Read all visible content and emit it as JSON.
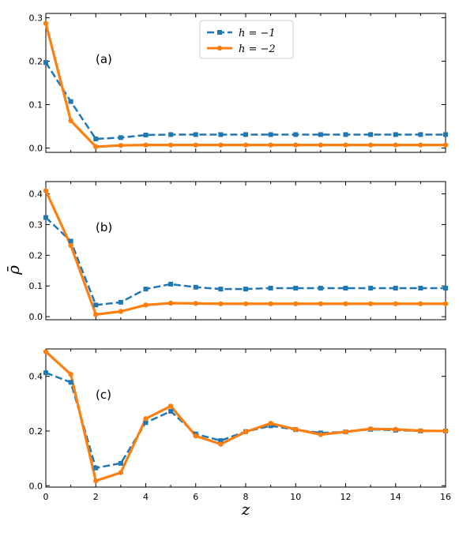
{
  "chart_data": {
    "type": "line",
    "x": [
      0,
      1,
      2,
      3,
      4,
      5,
      6,
      7,
      8,
      9,
      10,
      11,
      12,
      13,
      14,
      15,
      16
    ],
    "xlabel": "z",
    "ylabel": "ρ̄",
    "xlim": [
      0,
      16
    ],
    "xticks": [
      "0",
      "2",
      "4",
      "6",
      "8",
      "10",
      "12",
      "14",
      "16"
    ],
    "legend": {
      "placement": "top-center",
      "entries": [
        "h = −1",
        "h = −2"
      ]
    },
    "colors": {
      "h1": "#1f77b4",
      "h2": "#ff7f0e"
    },
    "panels": [
      {
        "label": "(a)",
        "ylim": [
          -0.01,
          0.31
        ],
        "yticks": [
          "0.0",
          "0.1",
          "0.2",
          "0.3"
        ],
        "series": [
          {
            "name": "h = −1",
            "values": [
              0.197,
              0.107,
              0.021,
              0.024,
              0.03,
              0.031,
              0.031,
              0.031,
              0.031,
              0.031,
              0.031,
              0.031,
              0.031,
              0.031,
              0.031,
              0.031,
              0.031
            ]
          },
          {
            "name": "h = −2",
            "values": [
              0.287,
              0.063,
              0.003,
              0.006,
              0.007,
              0.007,
              0.007,
              0.007,
              0.007,
              0.007,
              0.007,
              0.007,
              0.007,
              0.007,
              0.007,
              0.007,
              0.007
            ]
          }
        ]
      },
      {
        "label": "(b)",
        "ylim": [
          -0.01,
          0.44
        ],
        "yticks": [
          "0.0",
          "0.1",
          "0.2",
          "0.3",
          "0.4"
        ],
        "series": [
          {
            "name": "h = −1",
            "values": [
              0.323,
              0.246,
              0.038,
              0.047,
              0.09,
              0.106,
              0.096,
              0.09,
              0.09,
              0.093,
              0.093,
              0.093,
              0.093,
              0.093,
              0.093,
              0.093,
              0.093
            ]
          },
          {
            "name": "h = −2",
            "values": [
              0.41,
              0.232,
              0.007,
              0.017,
              0.038,
              0.044,
              0.043,
              0.042,
              0.042,
              0.042,
              0.042,
              0.042,
              0.042,
              0.042,
              0.042,
              0.042,
              0.042
            ]
          }
        ]
      },
      {
        "label": "(c)",
        "ylim": [
          -0.005,
          0.5
        ],
        "yticks": [
          "0.0",
          "0.2",
          "0.4"
        ],
        "series": [
          {
            "name": "h = −1",
            "values": [
              0.413,
              0.378,
              0.065,
              0.082,
              0.231,
              0.272,
              0.189,
              0.165,
              0.198,
              0.219,
              0.205,
              0.193,
              0.197,
              0.206,
              0.203,
              0.2,
              0.2
            ]
          },
          {
            "name": "h = −2",
            "values": [
              0.49,
              0.407,
              0.018,
              0.048,
              0.245,
              0.291,
              0.182,
              0.152,
              0.197,
              0.228,
              0.206,
              0.187,
              0.197,
              0.208,
              0.206,
              0.201,
              0.2
            ]
          }
        ]
      }
    ]
  }
}
